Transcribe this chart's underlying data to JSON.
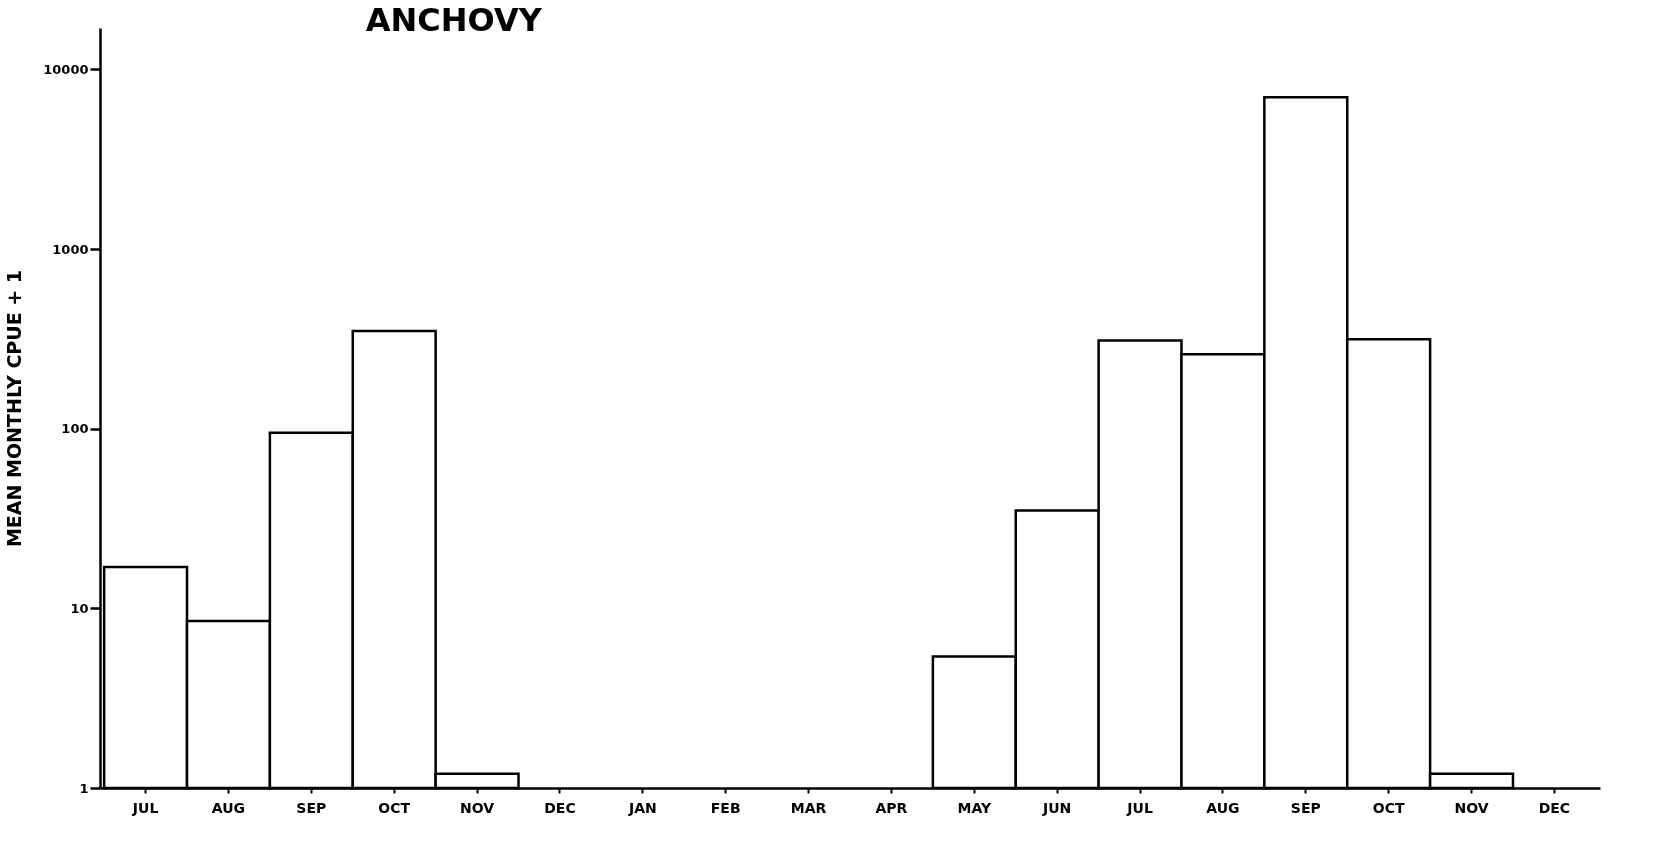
{
  "chart_data": {
    "type": "bar",
    "title": "ANCHOVY",
    "ylabel": "MEAN MONTHLY CPUE + 1",
    "categories": [
      "JUL",
      "AUG",
      "SEP",
      "OCT",
      "NOV",
      "DEC",
      "JAN",
      "FEB",
      "MAR",
      "APR",
      "MAY",
      "JUN",
      "JUL",
      "AUG",
      "SEP",
      "OCT",
      "NOV",
      "DEC"
    ],
    "values": [
      17,
      8.5,
      95,
      350,
      1.2,
      null,
      null,
      null,
      null,
      null,
      5.4,
      35,
      310,
      260,
      7000,
      315,
      1.2,
      null
    ],
    "color": "#ffffff",
    "log": true,
    "ylim": [
      1,
      17000
    ],
    "yticks": [
      1,
      10,
      100,
      1000,
      10000
    ],
    "grid": false
  }
}
